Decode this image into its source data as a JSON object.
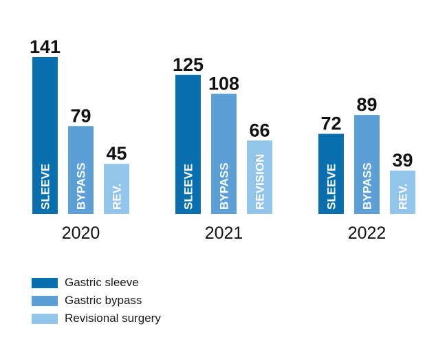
{
  "chart_data": {
    "type": "bar",
    "categories": [
      "2020",
      "2021",
      "2022"
    ],
    "series": [
      {
        "name": "Gastric sleeve",
        "values": [
          141,
          125,
          72
        ],
        "bar_labels": [
          "SLEEVE",
          "SLEEVE",
          "SLEEVE"
        ],
        "color": "#0a6fae"
      },
      {
        "name": "Gastric bypass",
        "values": [
          79,
          108,
          89
        ],
        "bar_labels": [
          "BYPASS",
          "BYPASS",
          "BYPASS"
        ],
        "color": "#5c9fd6"
      },
      {
        "name": "Revisional surgery",
        "values": [
          45,
          66,
          39
        ],
        "bar_labels": [
          "REV.",
          "REVISION",
          "REV."
        ],
        "color": "#93c4ea"
      }
    ],
    "ylim": [
      0,
      141
    ],
    "grid": false,
    "legend_position": "bottom-left"
  }
}
